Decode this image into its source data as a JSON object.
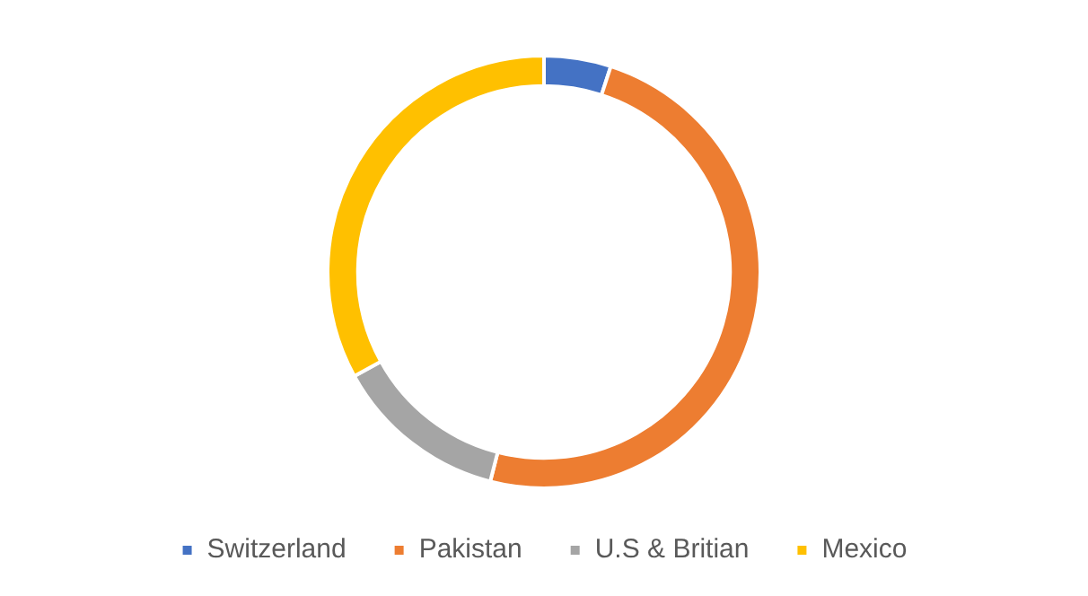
{
  "chart_data": {
    "type": "donut",
    "categories": [
      "Switzerland",
      "Pakistan",
      "U.S & Britian",
      "Mexico"
    ],
    "values": [
      5,
      49,
      13,
      33
    ],
    "colors": [
      "#4472c4",
      "#ed7d31",
      "#a5a5a5",
      "#ffc000"
    ],
    "legend": "bottom"
  }
}
